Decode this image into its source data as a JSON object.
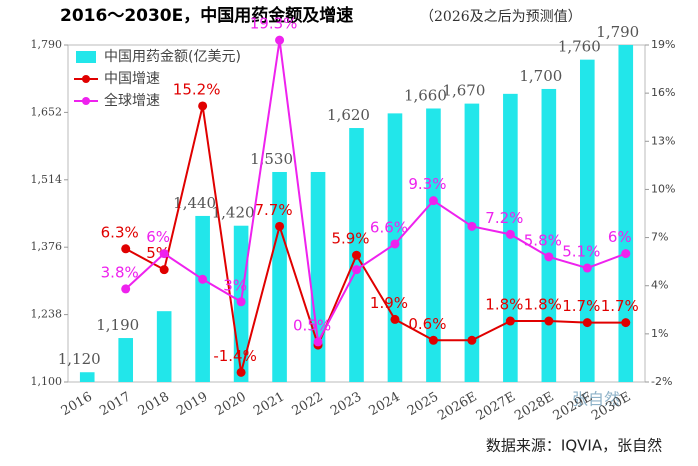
{
  "chart_data": {
    "type": "bar-line",
    "title": "2016～2030E，中国用药金额及增速",
    "subtitle": "（2026及之后为预测值）",
    "source": "数据来源：IQVIA，张自然",
    "watermark": "张自然",
    "categories": [
      "2016",
      "2017",
      "2018",
      "2019",
      "2020",
      "2021",
      "2022",
      "2023",
      "2024",
      "2025",
      "2026E",
      "2027E",
      "2028E",
      "2029E",
      "2030E"
    ],
    "series": [
      {
        "name": "中国用药金额(亿美元)",
        "type": "bar",
        "color": "#22e6ea",
        "values": [
          1120,
          1190,
          1245,
          1440,
          1420,
          1530,
          1530,
          1620,
          1650,
          1660,
          1670,
          1690,
          1700,
          1760,
          1790
        ],
        "value_labels": [
          "1,120",
          "1,190",
          null,
          "1,440",
          "1,420",
          "1,530",
          null,
          "1,620",
          null,
          "1,660",
          "1,670",
          null,
          "1,700",
          "1,760",
          "1,790"
        ]
      },
      {
        "name": "中国增速",
        "type": "line",
        "axis": "y2",
        "color": "#e00000",
        "values": [
          null,
          6.3,
          5,
          15.2,
          -1.4,
          7.7,
          0.3,
          5.9,
          1.9,
          0.6,
          0.6,
          1.8,
          1.8,
          1.7,
          1.7
        ],
        "value_labels": [
          null,
          "6.3%",
          "5%",
          "15.2%",
          "-1.4%",
          "7.7%",
          null,
          "5.9%",
          "1.9%",
          "0.6%",
          null,
          "1.8%",
          "1.8%",
          "1.7%",
          "1.7%"
        ]
      },
      {
        "name": "全球增速",
        "type": "line",
        "axis": "y2",
        "color": "#ee22ee",
        "values": [
          null,
          3.8,
          6,
          4.4,
          3,
          19.3,
          0.5,
          5,
          6.6,
          9.3,
          7.7,
          7.2,
          5.8,
          5.1,
          6
        ],
        "value_labels": [
          null,
          "3.8%",
          "6%",
          null,
          "3%",
          "19.3%",
          "0.5%",
          null,
          "6.6%",
          "9.3%",
          null,
          "7.2%",
          "5.8%",
          "5.1%",
          "6%"
        ]
      }
    ],
    "ylim": [
      1100,
      1790
    ],
    "yticks": [
      {
        "value": 1100,
        "label": "1,100"
      },
      {
        "value": 1238,
        "label": "1,238"
      },
      {
        "value": 1376,
        "label": "1,376"
      },
      {
        "value": 1514,
        "label": "1,514"
      },
      {
        "value": 1652,
        "label": "1,652"
      },
      {
        "value": 1790,
        "label": "1,790"
      }
    ],
    "y2lim": [
      -2,
      19
    ],
    "y2ticks": [
      {
        "value": -2,
        "label": "-2%"
      },
      {
        "value": 1,
        "label": "1%"
      },
      {
        "value": 4,
        "label": "4%"
      },
      {
        "value": 7,
        "label": "7%"
      },
      {
        "value": 10,
        "label": "10%"
      },
      {
        "value": 13,
        "label": "13%"
      },
      {
        "value": 16,
        "label": "16%"
      },
      {
        "value": 19,
        "label": "19%"
      }
    ],
    "legend": "upper left"
  }
}
